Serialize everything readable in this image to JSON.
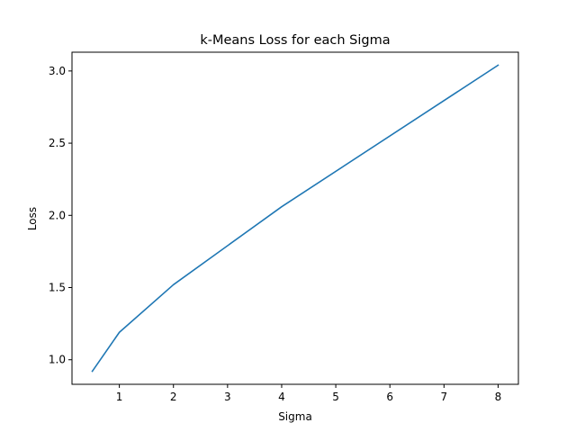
{
  "chart_data": {
    "type": "line",
    "title": "k-Means Loss for each Sigma",
    "xlabel": "Sigma",
    "ylabel": "Loss",
    "xlim": [
      0.125,
      8.375
    ],
    "ylim": [
      0.83,
      3.13
    ],
    "xticks": [
      1,
      2,
      3,
      4,
      5,
      6,
      7,
      8
    ],
    "yticks": [
      1.0,
      1.5,
      2.0,
      2.5,
      3.0
    ],
    "xtick_labels": [
      "1",
      "2",
      "3",
      "4",
      "5",
      "6",
      "7",
      "8"
    ],
    "ytick_labels": [
      "1.0",
      "1.5",
      "2.0",
      "2.5",
      "3.0"
    ],
    "grid": false,
    "series": [
      {
        "color": "#1f77b4",
        "x": [
          0.5,
          1,
          2,
          4,
          8
        ],
        "y": [
          0.92,
          1.19,
          1.52,
          2.06,
          3.04
        ]
      }
    ]
  }
}
